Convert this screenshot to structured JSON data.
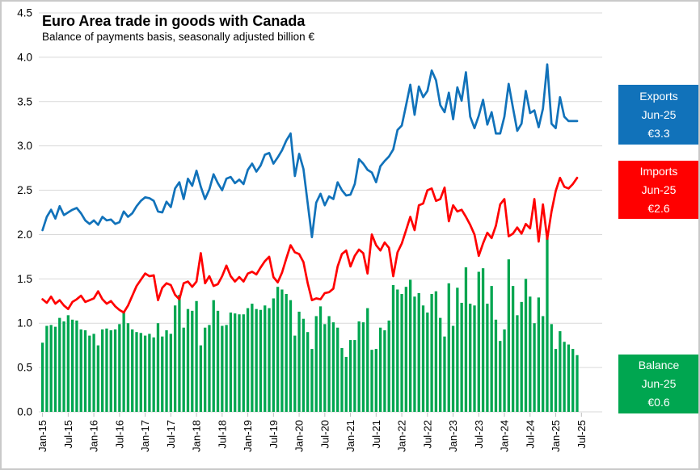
{
  "title": "Euro Area trade in goods with Canada",
  "subtitle": "Balance of payments basis, seasonally adjusted billion €",
  "callouts": {
    "exports": {
      "series": "Exports",
      "period": "Jun-25",
      "value": "€3.3",
      "color": "#1172BA"
    },
    "imports": {
      "series": "Imports",
      "period": "Jun-25",
      "value": "€2.6",
      "color": "#FF0000"
    },
    "balance": {
      "series": "Balance",
      "period": "Jun-25",
      "value": "€0.6",
      "color": "#00A650"
    }
  },
  "colors": {
    "grid": "#D9D9D9",
    "tick": "#BFBFBF",
    "axis_text": "#000000",
    "exports_line": "#1172BA",
    "imports_line": "#FF0000",
    "balance_bar": "#00A650"
  },
  "chart_data": {
    "type": "combo",
    "title": "Euro Area trade in goods with Canada",
    "subtitle": "Balance of payments basis, seasonally adjusted billion €",
    "x_unit": "month",
    "x_start": "Jan-2015",
    "x_end": "Jun-2025",
    "n_points": 126,
    "ylim": [
      0,
      4.5
    ],
    "y_tick_labels": [
      "0.0",
      "0.5",
      "1.0",
      "1.5",
      "2.0",
      "2.5",
      "3.0",
      "3.5",
      "4.0",
      "4.5"
    ],
    "x_tick_labels": [
      "Jan-15",
      "Jul-15",
      "Jan-16",
      "Jul-16",
      "Jan-17",
      "Jul-17",
      "Jan-18",
      "Jul-18",
      "Jan-19",
      "Jul-19",
      "Jan-20",
      "Jul-20",
      "Jan-21",
      "Jul-21",
      "Jan-22",
      "Jul-22",
      "Jan-23",
      "Jul-23",
      "Jan-24",
      "Jul-24",
      "Jan-25",
      "Jul-25"
    ],
    "x_tick_every_n_months": 6,
    "grid": true,
    "legend_position": "right-callouts",
    "series": [
      {
        "name": "Exports",
        "type": "line",
        "color": "#1172BA",
        "values": [
          2.05,
          2.2,
          2.28,
          2.18,
          2.32,
          2.22,
          2.25,
          2.28,
          2.3,
          2.24,
          2.16,
          2.12,
          2.16,
          2.11,
          2.2,
          2.16,
          2.17,
          2.12,
          2.14,
          2.26,
          2.2,
          2.24,
          2.32,
          2.38,
          2.42,
          2.41,
          2.38,
          2.26,
          2.25,
          2.37,
          2.31,
          2.52,
          2.59,
          2.4,
          2.63,
          2.55,
          2.72,
          2.54,
          2.4,
          2.51,
          2.68,
          2.58,
          2.5,
          2.63,
          2.65,
          2.58,
          2.62,
          2.57,
          2.73,
          2.8,
          2.71,
          2.78,
          2.9,
          2.92,
          2.8,
          2.87,
          2.95,
          3.06,
          3.14,
          2.66,
          2.91,
          2.74,
          2.35,
          1.97,
          2.36,
          2.46,
          2.33,
          2.43,
          2.4,
          2.59,
          2.5,
          2.44,
          2.45,
          2.57,
          2.85,
          2.8,
          2.73,
          2.7,
          2.59,
          2.77,
          2.83,
          2.88,
          2.96,
          3.18,
          3.23,
          3.46,
          3.69,
          3.35,
          3.67,
          3.55,
          3.62,
          3.85,
          3.74,
          3.46,
          3.38,
          3.6,
          3.3,
          3.66,
          3.51,
          3.83,
          3.33,
          3.2,
          3.34,
          3.52,
          3.24,
          3.38,
          3.14,
          3.14,
          3.33,
          3.7,
          3.43,
          3.17,
          3.25,
          3.62,
          3.37,
          3.4,
          3.21,
          3.42,
          3.92,
          3.25,
          3.2,
          3.55,
          3.33,
          3.28,
          3.28,
          3.28
        ]
      },
      {
        "name": "Imports",
        "type": "line",
        "color": "#FF0000",
        "values": [
          1.27,
          1.23,
          1.3,
          1.22,
          1.26,
          1.2,
          1.16,
          1.24,
          1.27,
          1.31,
          1.24,
          1.26,
          1.28,
          1.36,
          1.27,
          1.22,
          1.25,
          1.19,
          1.15,
          1.12,
          1.2,
          1.31,
          1.42,
          1.49,
          1.56,
          1.53,
          1.54,
          1.26,
          1.4,
          1.45,
          1.43,
          1.32,
          1.27,
          1.45,
          1.47,
          1.41,
          1.47,
          1.79,
          1.45,
          1.53,
          1.42,
          1.44,
          1.53,
          1.65,
          1.53,
          1.47,
          1.52,
          1.47,
          1.56,
          1.58,
          1.55,
          1.63,
          1.7,
          1.75,
          1.52,
          1.46,
          1.57,
          1.73,
          1.88,
          1.8,
          1.78,
          1.69,
          1.45,
          1.26,
          1.28,
          1.27,
          1.34,
          1.35,
          1.39,
          1.64,
          1.78,
          1.82,
          1.64,
          1.76,
          1.83,
          1.79,
          1.56,
          2.0,
          1.88,
          1.82,
          1.91,
          1.85,
          1.53,
          1.8,
          1.9,
          2.05,
          2.2,
          2.05,
          2.33,
          2.35,
          2.5,
          2.52,
          2.38,
          2.4,
          2.53,
          2.15,
          2.33,
          2.26,
          2.28,
          2.2,
          2.11,
          2.0,
          1.76,
          1.9,
          2.02,
          1.96,
          2.1,
          2.34,
          2.4,
          1.98,
          2.01,
          2.08,
          2.01,
          2.12,
          2.07,
          2.4,
          1.92,
          2.34,
          1.95,
          2.26,
          2.49,
          2.64,
          2.54,
          2.52,
          2.57,
          2.64
        ]
      },
      {
        "name": "Balance",
        "type": "bar",
        "color": "#00A650",
        "values": [
          0.78,
          0.97,
          0.98,
          0.96,
          1.06,
          1.02,
          1.09,
          1.04,
          1.03,
          0.93,
          0.92,
          0.86,
          0.88,
          0.75,
          0.93,
          0.94,
          0.92,
          0.93,
          0.99,
          1.14,
          1.0,
          0.93,
          0.9,
          0.89,
          0.86,
          0.88,
          0.84,
          1.0,
          0.85,
          0.92,
          0.88,
          1.2,
          1.32,
          0.95,
          1.16,
          1.14,
          1.25,
          0.75,
          0.95,
          0.98,
          1.26,
          1.14,
          0.97,
          0.98,
          1.12,
          1.11,
          1.1,
          1.1,
          1.17,
          1.22,
          1.16,
          1.15,
          1.2,
          1.17,
          1.28,
          1.41,
          1.38,
          1.33,
          1.26,
          0.86,
          1.13,
          1.05,
          0.9,
          0.71,
          1.08,
          1.19,
          0.99,
          1.08,
          1.01,
          0.95,
          0.72,
          0.62,
          0.81,
          0.81,
          1.02,
          1.01,
          1.17,
          0.7,
          0.71,
          0.95,
          0.92,
          1.03,
          1.43,
          1.38,
          1.33,
          1.41,
          1.49,
          1.3,
          1.34,
          1.2,
          1.12,
          1.33,
          1.36,
          1.06,
          0.85,
          1.45,
          0.97,
          1.4,
          1.23,
          1.63,
          1.22,
          1.2,
          1.58,
          1.62,
          1.22,
          1.42,
          1.04,
          0.8,
          0.93,
          1.72,
          1.42,
          1.09,
          1.24,
          1.5,
          1.3,
          1.0,
          1.29,
          1.08,
          1.97,
          0.99,
          0.71,
          0.91,
          0.79,
          0.76,
          0.71,
          0.64
        ]
      }
    ]
  }
}
